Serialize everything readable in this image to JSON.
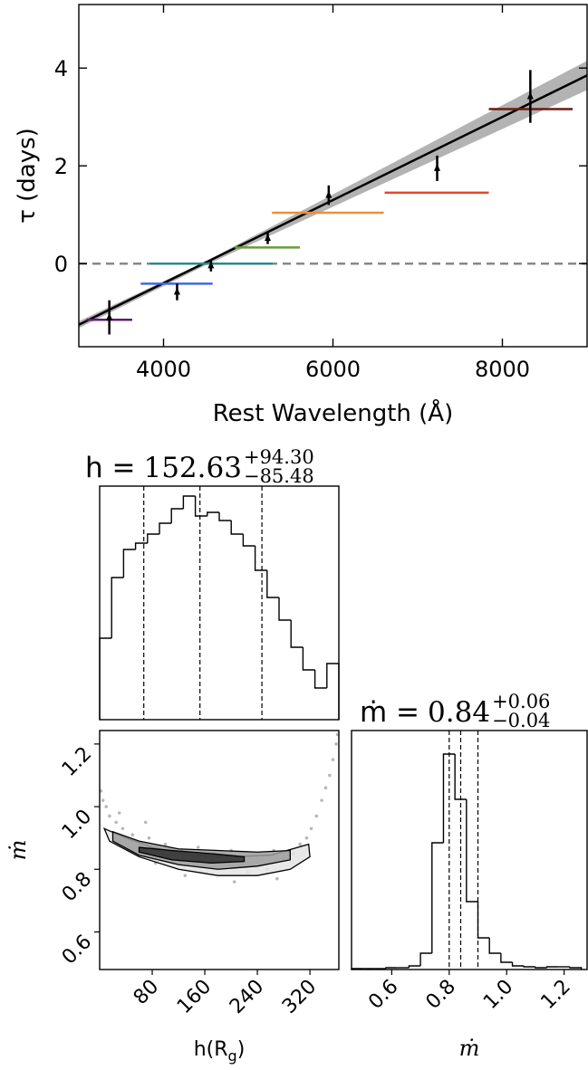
{
  "chart_data": [
    {
      "type": "errorbar",
      "xlabel": "Rest Wavelength (Å)",
      "ylabel": "τ (days)",
      "xlim": [
        3000,
        9000
      ],
      "ylim": [
        -1.7,
        5.3
      ],
      "xticks": [
        4000,
        6000,
        8000
      ],
      "yticks": [
        0,
        2,
        4
      ],
      "hline": 0,
      "hline_color": "#888888",
      "fit_band": {
        "x": [
          3000,
          4500,
          9000
        ],
        "lower": [
          -1.32,
          -0.03,
          3.55
        ],
        "upper": [
          -1.18,
          0.05,
          4.15
        ],
        "color": "#b3b3b3"
      },
      "fit": {
        "x": [
          3000,
          9000
        ],
        "y": [
          -1.25,
          3.85
        ],
        "color": "#000000"
      },
      "bands": {
        "x_low": [
          3090,
          3730,
          3840,
          4840,
          5280,
          6610,
          7840
        ],
        "x_high": [
          3630,
          4580,
          5290,
          5610,
          6600,
          7840,
          8830
        ],
        "y": [
          -1.15,
          -0.41,
          0,
          0.33,
          1.04,
          1.45,
          3.16
        ],
        "colors": [
          "#5c1e6e",
          "#4169e1",
          "#2a8a8a",
          "#6b9b3a",
          "#f28c38",
          "#e8472a",
          "#6e1a12"
        ]
      },
      "points": {
        "x": [
          3360,
          4160,
          4560,
          5230,
          5950,
          7230,
          8330
        ],
        "y": [
          -1.1,
          -0.58,
          -0.04,
          0.52,
          1.4,
          1.95,
          3.42
        ],
        "yerr": [
          0.35,
          0.17,
          0.12,
          0.12,
          0.2,
          0.26,
          0.54
        ],
        "color": "#000000"
      }
    },
    {
      "type": "histogram",
      "title": {
        "lhs": "h =",
        "value": "152.63",
        "plus": "+94.30",
        "minus": "−85.48"
      },
      "xlim": [
        0,
        364
      ],
      "ylim": [
        0,
        258
      ],
      "bins": [
        0,
        18.2,
        36.4,
        54.6,
        72.8,
        91,
        109.2,
        127.4,
        145.6,
        163.8,
        182,
        200.2,
        218.4,
        236.6,
        254.8,
        273,
        291.2,
        309.4,
        327.6,
        345.8,
        364
      ],
      "counts": [
        90,
        157,
        188,
        195,
        205,
        217,
        233,
        247,
        225,
        229,
        220,
        205,
        192,
        165,
        135,
        110,
        80,
        55,
        35,
        62
      ],
      "quantiles": [
        67.15,
        152.63,
        246.93
      ],
      "color": "#000000"
    },
    {
      "type": "scatter",
      "xlabel": [
        "h(R",
        "g",
        ")"
      ],
      "ylabel": "ṁ",
      "xlim": [
        0,
        364
      ],
      "ylim": [
        0.48,
        1.243
      ],
      "xticks": [
        80,
        160,
        240,
        320
      ],
      "yticks": [
        0.6,
        0.8,
        {
          "value": 1,
          "label": "1.0"
        },
        1.2
      ],
      "x": [
        2,
        5,
        10,
        15,
        25,
        35,
        50,
        60,
        75,
        90,
        100,
        110,
        125,
        140,
        150,
        165,
        175,
        190,
        200,
        215,
        225,
        240,
        255,
        265,
        280,
        295,
        305,
        315,
        322,
        330,
        338,
        344,
        350,
        355,
        360,
        362,
        45,
        85,
        130,
        205,
        270,
        30,
        70
      ],
      "y": [
        1.05,
        1.02,
        1.0,
        0.97,
        0.95,
        0.93,
        0.91,
        0.88,
        0.9,
        0.86,
        0.88,
        0.84,
        0.86,
        0.83,
        0.87,
        0.82,
        0.85,
        0.81,
        0.86,
        0.82,
        0.79,
        0.84,
        0.8,
        0.86,
        0.83,
        0.85,
        0.88,
        0.9,
        0.93,
        0.97,
        1.02,
        1.06,
        1.1,
        1.15,
        1.2,
        1.23,
        0.86,
        0.82,
        0.78,
        0.76,
        0.77,
        0.98,
        0.95
      ],
      "point_color": "#9a9a9a",
      "contour_color": "#000000",
      "contour_fills": [
        "#e4e4e4",
        "#9c9c9c",
        "#2e2e2e"
      ],
      "contours": [
        {
          "x": [
            7,
            40,
            80,
            140,
            200,
            260,
            318,
            320,
            290,
            240,
            180,
            120,
            60,
            15
          ],
          "y": [
            0.93,
            0.9,
            0.87,
            0.845,
            0.84,
            0.845,
            0.88,
            0.84,
            0.8,
            0.78,
            0.78,
            0.8,
            0.84,
            0.89
          ]
        },
        {
          "x": [
            20,
            60,
            120,
            180,
            240,
            290,
            290,
            240,
            180,
            120,
            60,
            20
          ],
          "y": [
            0.92,
            0.89,
            0.865,
            0.86,
            0.855,
            0.86,
            0.83,
            0.81,
            0.8,
            0.815,
            0.845,
            0.89
          ]
        },
        {
          "x": [
            60,
            110,
            170,
            220,
            220,
            170,
            110,
            60
          ],
          "y": [
            0.87,
            0.86,
            0.85,
            0.84,
            0.825,
            0.82,
            0.83,
            0.855
          ]
        }
      ]
    },
    {
      "type": "histogram",
      "title": {
        "lhs": "ṁ =",
        "value": "0.84",
        "plus": "+0.06",
        "minus": "−0.04"
      },
      "xlabel": "ṁ",
      "xlim": [
        0.46,
        1.28
      ],
      "ylim": [
        0,
        264
      ],
      "xticks": [
        0.6,
        0.8,
        {
          "value": 1,
          "label": "1.0"
        },
        1.2
      ],
      "bins": [
        0.46,
        0.5,
        0.54,
        0.58,
        0.62,
        0.66,
        0.7,
        0.74,
        0.78,
        0.82,
        0.86,
        0.9,
        0.94,
        0.98,
        1.02,
        1.06,
        1.1,
        1.14,
        1.18,
        1.22,
        1.26
      ],
      "counts": [
        1,
        1,
        1,
        2,
        2,
        4,
        18,
        140,
        238,
        188,
        75,
        35,
        18,
        8,
        4,
        3,
        2,
        3,
        3,
        2
      ],
      "quantiles": [
        0.8,
        0.84,
        0.9
      ],
      "color": "#000000"
    }
  ]
}
